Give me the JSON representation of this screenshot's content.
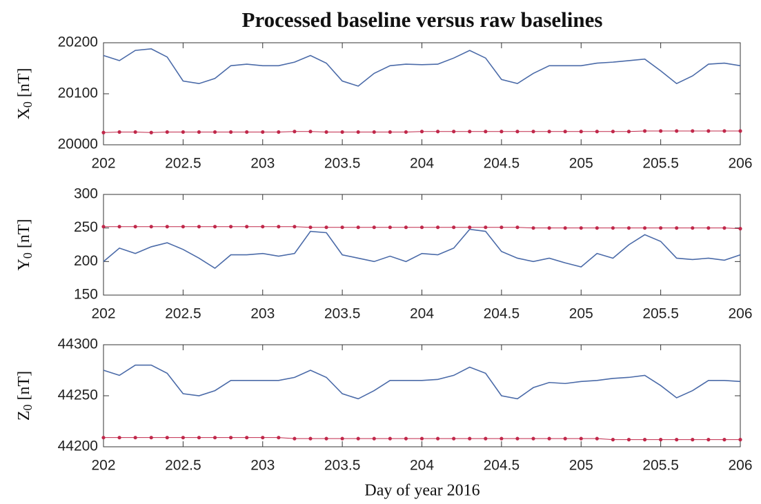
{
  "title": "Processed baseline versus raw baselines",
  "xlabel": "Day of year 2016",
  "chart_data": [
    {
      "type": "line",
      "ylabel": {
        "text": "X",
        "subscript": "0",
        "unit": "[nT]"
      },
      "x": [
        202.0,
        202.1,
        202.2,
        202.3,
        202.4,
        202.5,
        202.6,
        202.7,
        202.8,
        202.9,
        203.0,
        203.1,
        203.2,
        203.3,
        203.4,
        203.5,
        203.6,
        203.7,
        203.8,
        203.9,
        204.0,
        204.1,
        204.2,
        204.3,
        204.4,
        204.5,
        204.6,
        204.7,
        204.8,
        204.9,
        205.0,
        205.1,
        205.2,
        205.3,
        205.4,
        205.5,
        205.6,
        205.7,
        205.8,
        205.9,
        206.0
      ],
      "series": [
        {
          "color": "#4a6aa8",
          "marker": false,
          "values": [
            20175,
            20165,
            20185,
            20188,
            20172,
            20125,
            20120,
            20130,
            20155,
            20158,
            20155,
            20155,
            20162,
            20175,
            20160,
            20125,
            20115,
            20140,
            20155,
            20158,
            20157,
            20158,
            20170,
            20185,
            20170,
            20128,
            20120,
            20140,
            20155,
            20155,
            20155,
            20160,
            20162,
            20165,
            20168,
            20145,
            20120,
            20135,
            20158,
            20160,
            20155
          ]
        },
        {
          "color": "#c0284a",
          "marker": true,
          "values": [
            20024,
            20025,
            20025,
            20024,
            20025,
            20025,
            20025,
            20025,
            20025,
            20025,
            20025,
            20025,
            20026,
            20026,
            20025,
            20025,
            20025,
            20025,
            20025,
            20025,
            20026,
            20026,
            20026,
            20026,
            20026,
            20026,
            20026,
            20026,
            20026,
            20026,
            20026,
            20026,
            20026,
            20026,
            20027,
            20027,
            20027,
            20027,
            20027,
            20027,
            20027
          ]
        }
      ],
      "xlim": [
        202,
        206
      ],
      "xticks": [
        202,
        202.5,
        203,
        203.5,
        204,
        204.5,
        205,
        205.5,
        206
      ],
      "ylim": [
        20000,
        20200
      ],
      "yticks": [
        20000,
        20100,
        20200
      ]
    },
    {
      "type": "line",
      "ylabel": {
        "text": "Y",
        "subscript": "0",
        "unit": "[nT]"
      },
      "x": [
        202.0,
        202.1,
        202.2,
        202.3,
        202.4,
        202.5,
        202.6,
        202.7,
        202.8,
        202.9,
        203.0,
        203.1,
        203.2,
        203.3,
        203.4,
        203.5,
        203.6,
        203.7,
        203.8,
        203.9,
        204.0,
        204.1,
        204.2,
        204.3,
        204.4,
        204.5,
        204.6,
        204.7,
        204.8,
        204.9,
        205.0,
        205.1,
        205.2,
        205.3,
        205.4,
        205.5,
        205.6,
        205.7,
        205.8,
        205.9,
        206.0
      ],
      "series": [
        {
          "color": "#4a6aa8",
          "marker": false,
          "values": [
            200,
            220,
            212,
            222,
            228,
            218,
            205,
            190,
            210,
            210,
            212,
            208,
            212,
            245,
            243,
            210,
            205,
            200,
            208,
            200,
            212,
            210,
            220,
            248,
            245,
            215,
            205,
            200,
            205,
            198,
            192,
            212,
            205,
            225,
            240,
            230,
            205,
            203,
            205,
            202,
            210
          ]
        },
        {
          "color": "#c0284a",
          "marker": true,
          "values": [
            252,
            252,
            252,
            252,
            252,
            252,
            252,
            252,
            252,
            252,
            252,
            252,
            252,
            251,
            251,
            251,
            251,
            251,
            251,
            251,
            251,
            251,
            251,
            251,
            251,
            251,
            251,
            250,
            250,
            250,
            250,
            250,
            250,
            250,
            250,
            250,
            250,
            250,
            250,
            250,
            249
          ]
        }
      ],
      "xlim": [
        202,
        206
      ],
      "xticks": [
        202,
        202.5,
        203,
        203.5,
        204,
        204.5,
        205,
        205.5,
        206
      ],
      "ylim": [
        150,
        300
      ],
      "yticks": [
        150,
        200,
        250,
        300
      ]
    },
    {
      "type": "line",
      "ylabel": {
        "text": "Z",
        "subscript": "0",
        "unit": "[nT]"
      },
      "x": [
        202.0,
        202.1,
        202.2,
        202.3,
        202.4,
        202.5,
        202.6,
        202.7,
        202.8,
        202.9,
        203.0,
        203.1,
        203.2,
        203.3,
        203.4,
        203.5,
        203.6,
        203.7,
        203.8,
        203.9,
        204.0,
        204.1,
        204.2,
        204.3,
        204.4,
        204.5,
        204.6,
        204.7,
        204.8,
        204.9,
        205.0,
        205.1,
        205.2,
        205.3,
        205.4,
        205.5,
        205.6,
        205.7,
        205.8,
        205.9,
        206.0
      ],
      "series": [
        {
          "color": "#4a6aa8",
          "marker": false,
          "values": [
            44275,
            44270,
            44280,
            44280,
            44272,
            44252,
            44250,
            44255,
            44265,
            44265,
            44265,
            44265,
            44268,
            44275,
            44268,
            44252,
            44247,
            44255,
            44265,
            44265,
            44265,
            44266,
            44270,
            44278,
            44272,
            44250,
            44247,
            44258,
            44263,
            44262,
            44264,
            44265,
            44267,
            44268,
            44270,
            44260,
            44248,
            44255,
            44265,
            44265,
            44264
          ]
        },
        {
          "color": "#c0284a",
          "marker": true,
          "values": [
            44209,
            44209,
            44209,
            44209,
            44209,
            44209,
            44209,
            44209,
            44209,
            44209,
            44209,
            44209,
            44208,
            44208,
            44208,
            44208,
            44208,
            44208,
            44208,
            44208,
            44208,
            44208,
            44208,
            44208,
            44208,
            44208,
            44208,
            44208,
            44208,
            44208,
            44208,
            44208,
            44207,
            44207,
            44207,
            44207,
            44207,
            44207,
            44207,
            44207,
            44207
          ]
        }
      ],
      "xlim": [
        202,
        206
      ],
      "xticks": [
        202,
        202.5,
        203,
        203.5,
        204,
        204.5,
        205,
        205.5,
        206
      ],
      "ylim": [
        44200,
        44300
      ],
      "yticks": [
        44200,
        44250,
        44300
      ]
    }
  ]
}
